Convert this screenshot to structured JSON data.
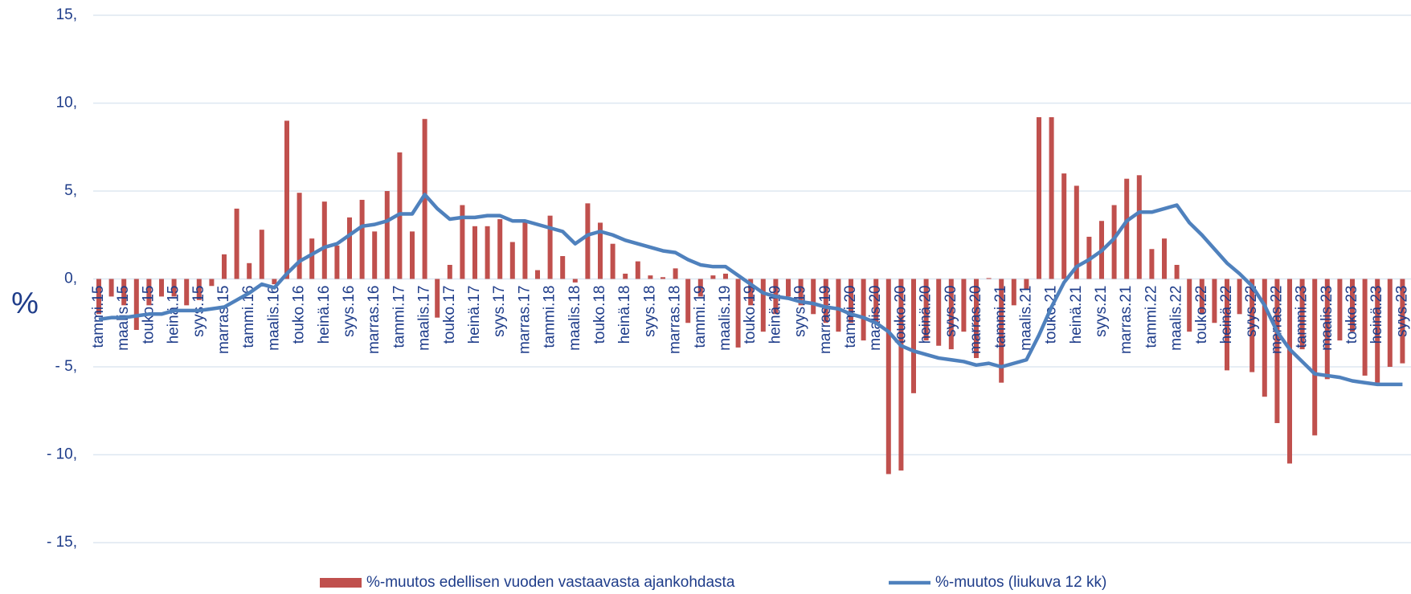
{
  "chart_data": {
    "type": "bar",
    "y_label": "%",
    "categories": [
      "tammi.15",
      null,
      "maalis.15",
      null,
      "touko.15",
      null,
      "heinä.15",
      null,
      "syys.15",
      null,
      "marras.15",
      null,
      "tammi.16",
      null,
      "maalis.16",
      null,
      "touko.16",
      null,
      "heinä.16",
      null,
      "syys.16",
      null,
      "marras.16",
      null,
      "tammi.17",
      null,
      "maalis.17",
      null,
      "touko.17",
      null,
      "heinä.17",
      null,
      "syys.17",
      null,
      "marras.17",
      null,
      "tammi.18",
      null,
      "maalis.18",
      null,
      "touko.18",
      null,
      "heinä.18",
      null,
      "syys.18",
      null,
      "marras.18",
      null,
      "tammi.19",
      null,
      "maalis.19",
      null,
      "touko.19",
      null,
      "heinä.19",
      null,
      "syys.19",
      null,
      "marras.19",
      null,
      "tammi.20",
      null,
      "maalis.20",
      null,
      "touko.20",
      null,
      "heinä.20",
      null,
      "syys.20",
      null,
      "marras.20",
      null,
      "tammi.21",
      null,
      "maalis.21",
      null,
      "touko.21",
      null,
      "heinä.21",
      null,
      "syys.21",
      null,
      "marras.21",
      null,
      "tammi.22",
      null,
      "maalis.22",
      null,
      "touko.22",
      null,
      "heinä.22",
      null,
      "syys.22",
      null,
      "marras.22",
      null,
      "tammi.23",
      null,
      "maalis.23",
      null,
      "touko.23",
      null,
      "heinä.23",
      null,
      "syys.23"
    ],
    "series": [
      {
        "name": "%-muutos edellisen vuoden vastaavasta ajankohdasta",
        "type": "bar",
        "color": "#c0504d",
        "values": [
          -2.0,
          -1.0,
          -1.5,
          -2.9,
          -1.5,
          -1.0,
          -1.0,
          -1.5,
          -1.2,
          -0.4,
          1.4,
          4.0,
          0.9,
          2.8,
          -0.3,
          9.0,
          4.9,
          2.3,
          4.4,
          1.9,
          3.5,
          4.5,
          2.7,
          5.0,
          7.2,
          2.7,
          9.1,
          -2.2,
          0.8,
          4.2,
          3.0,
          3.0,
          3.4,
          2.1,
          3.3,
          0.5,
          3.6,
          1.3,
          -0.2,
          4.3,
          3.2,
          2.0,
          0.3,
          1.0,
          0.2,
          0.1,
          0.6,
          -2.5,
          -1.0,
          0.2,
          0.3,
          -3.9,
          -1.5,
          -3.0,
          -2.0,
          -1.0,
          -1.5,
          -2.0,
          -2.5,
          -3.0,
          -2.5,
          -3.5,
          -2.5,
          -11.1,
          -10.9,
          -6.5,
          -3.5,
          -3.8,
          -4.0,
          -3.0,
          -4.5,
          0.05,
          -5.9,
          -1.5,
          -0.6,
          9.2,
          9.2,
          6.0,
          5.3,
          2.4,
          3.3,
          4.2,
          5.7,
          5.9,
          1.7,
          2.3,
          0.8,
          -3.0,
          -2.0,
          -2.5,
          -5.2,
          -2.0,
          -5.3,
          -6.7,
          -8.2,
          -10.5,
          -4.0,
          -8.9,
          -5.7,
          -3.5,
          -3.0,
          -5.5,
          -5.9,
          -5.0,
          -4.8
        ]
      },
      {
        "name": "%-muutos (liukuva 12 kk)",
        "type": "line",
        "color": "#4f81bd",
        "values": [
          -2.3,
          -2.2,
          -2.2,
          -2.1,
          -2.0,
          -2.0,
          -1.8,
          -1.8,
          -1.8,
          -1.7,
          -1.6,
          -1.2,
          -0.8,
          -0.3,
          -0.5,
          0.3,
          1.0,
          1.4,
          1.8,
          2.0,
          2.5,
          3.0,
          3.1,
          3.3,
          3.7,
          3.7,
          4.8,
          4.0,
          3.4,
          3.5,
          3.5,
          3.6,
          3.6,
          3.3,
          3.3,
          3.1,
          2.9,
          2.7,
          2.0,
          2.5,
          2.7,
          2.5,
          2.2,
          2.0,
          1.8,
          1.6,
          1.5,
          1.1,
          0.8,
          0.7,
          0.7,
          0.2,
          -0.3,
          -0.8,
          -1.0,
          -1.1,
          -1.3,
          -1.4,
          -1.6,
          -1.7,
          -2.0,
          -2.2,
          -2.5,
          -3.0,
          -3.8,
          -4.1,
          -4.3,
          -4.5,
          -4.6,
          -4.7,
          -4.9,
          -4.8,
          -5.0,
          -4.8,
          -4.6,
          -3.2,
          -1.6,
          -0.2,
          0.7,
          1.1,
          1.6,
          2.3,
          3.3,
          3.8,
          3.8,
          4.0,
          4.2,
          3.2,
          2.5,
          1.7,
          0.9,
          0.3,
          -0.4,
          -1.5,
          -3.0,
          -4.0,
          -4.7,
          -5.4,
          -5.5,
          -5.6,
          -5.8,
          -5.9,
          -6.0,
          -6.0,
          -6.0
        ]
      }
    ],
    "ylim": [
      -15,
      15
    ],
    "yticks": [
      {
        "value": 15,
        "label": "15,"
      },
      {
        "value": 10,
        "label": "10,"
      },
      {
        "value": 5,
        "label": "5,"
      },
      {
        "value": 0,
        "label": "0,"
      },
      {
        "value": -5,
        "label": "- 5,"
      },
      {
        "value": -10,
        "label": "- 10,"
      },
      {
        "value": -15,
        "label": "- 15,"
      }
    ],
    "grid": true
  }
}
